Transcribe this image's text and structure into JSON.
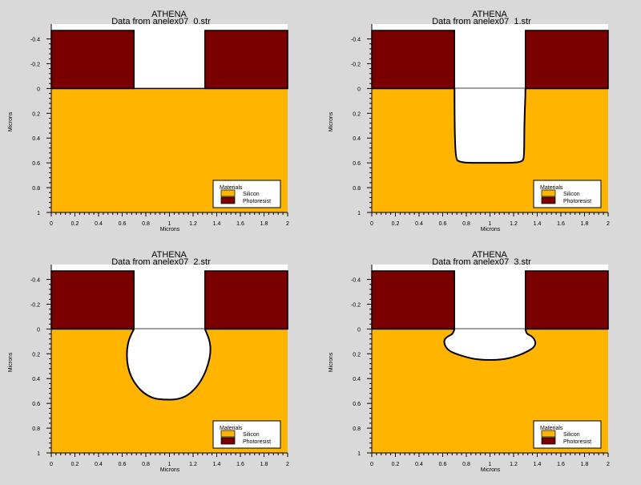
{
  "colors": {
    "background": "#d9d9d9",
    "silicon": "#ffb400",
    "photoresist": "#7a0000",
    "etched_void": "#ffffff",
    "outline": "#000000"
  },
  "chart_data": [
    {
      "type": "area",
      "title": "ATHENA",
      "subtitle": "Data from anelex07_0.str",
      "xlabel": "Microns",
      "ylabel": "Microns",
      "xlim": [
        0,
        2
      ],
      "ylim": [
        1,
        -0.52
      ],
      "y_inverted": true,
      "xticks": [
        "0",
        "0.2",
        "0.4",
        "0.6",
        "0.8",
        "1",
        "1.2",
        "1.4",
        "1.6",
        "1.8",
        "2"
      ],
      "yticks": [
        "-0.4",
        "-0.2",
        "0",
        "0.2",
        "0.4",
        "0.6",
        "0.8",
        "1"
      ],
      "legend": {
        "title": "Materials",
        "items": [
          "Silicon",
          "Photoresist"
        ],
        "position": "bottom-right"
      },
      "regions": {
        "silicon_surface_y": 0,
        "photoresist_top_y": -0.52,
        "photoresist_left_x": [
          0,
          0.7
        ],
        "photoresist_right_x": [
          1.3,
          2
        ],
        "etch_profile": [
          [
            0.7,
            0
          ],
          [
            1.3,
            0
          ]
        ]
      }
    },
    {
      "type": "area",
      "title": "ATHENA",
      "subtitle": "Data from anelex07_1.str",
      "xlabel": "Microns",
      "ylabel": "Microns",
      "xlim": [
        0,
        2
      ],
      "ylim": [
        1,
        -0.52
      ],
      "y_inverted": true,
      "xticks": [
        "0",
        "0.2",
        "0.4",
        "0.6",
        "0.8",
        "1",
        "1.2",
        "1.4",
        "1.6",
        "1.8",
        "2"
      ],
      "yticks": [
        "-0.4",
        "-0.2",
        "0",
        "0.2",
        "0.4",
        "0.6",
        "0.8",
        "1"
      ],
      "legend": {
        "title": "Materials",
        "items": [
          "Silicon",
          "Photoresist"
        ],
        "position": "bottom-right"
      },
      "regions": {
        "silicon_surface_y": 0,
        "photoresist_top_y": -0.52,
        "photoresist_left_x": [
          0,
          0.7
        ],
        "photoresist_right_x": [
          1.3,
          2
        ],
        "etch_profile": [
          [
            0.7,
            0
          ],
          [
            0.7,
            0.3
          ],
          [
            0.71,
            0.57
          ],
          [
            0.74,
            0.59
          ],
          [
            0.8,
            0.6
          ],
          [
            1.0,
            0.6
          ],
          [
            1.2,
            0.6
          ],
          [
            1.27,
            0.59
          ],
          [
            1.29,
            0.56
          ],
          [
            1.29,
            0.3
          ],
          [
            1.3,
            0.05
          ],
          [
            1.3,
            0
          ]
        ]
      }
    },
    {
      "type": "area",
      "title": "ATHENA",
      "subtitle": "Data from anelex07_2.str",
      "xlabel": "Microns",
      "ylabel": "Microns",
      "xlim": [
        0,
        2
      ],
      "ylim": [
        1,
        -0.52
      ],
      "y_inverted": true,
      "xticks": [
        "0",
        "0.2",
        "0.4",
        "0.6",
        "0.8",
        "1",
        "1.2",
        "1.4",
        "1.6",
        "1.8",
        "2"
      ],
      "yticks": [
        "-0.4",
        "-0.2",
        "0",
        "0.2",
        "0.4",
        "0.6",
        "0.8",
        "1"
      ],
      "legend": {
        "title": "Materials",
        "items": [
          "Silicon",
          "Photoresist"
        ],
        "position": "bottom-right"
      },
      "regions": {
        "silicon_surface_y": 0,
        "photoresist_top_y": -0.52,
        "photoresist_left_x": [
          0,
          0.7
        ],
        "photoresist_right_x": [
          1.3,
          2
        ],
        "etch_profile": [
          [
            0.7,
            0
          ],
          [
            0.66,
            0.07
          ],
          [
            0.64,
            0.16
          ],
          [
            0.64,
            0.26
          ],
          [
            0.66,
            0.35
          ],
          [
            0.7,
            0.43
          ],
          [
            0.77,
            0.51
          ],
          [
            0.86,
            0.56
          ],
          [
            0.95,
            0.57
          ],
          [
            1.06,
            0.57
          ],
          [
            1.15,
            0.54
          ],
          [
            1.23,
            0.47
          ],
          [
            1.29,
            0.38
          ],
          [
            1.33,
            0.28
          ],
          [
            1.35,
            0.18
          ],
          [
            1.34,
            0.09
          ],
          [
            1.3,
            0
          ]
        ]
      }
    },
    {
      "type": "area",
      "title": "ATHENA",
      "subtitle": "Data from anelex07_3.str",
      "xlabel": "Microns",
      "ylabel": "Microns",
      "xlim": [
        0,
        2
      ],
      "ylim": [
        1,
        -0.52
      ],
      "y_inverted": true,
      "xticks": [
        "0",
        "0.2",
        "0.4",
        "0.6",
        "0.8",
        "1",
        "1.2",
        "1.4",
        "1.6",
        "1.8",
        "2"
      ],
      "yticks": [
        "-0.4",
        "-0.2",
        "0",
        "0.2",
        "0.4",
        "0.6",
        "0.8",
        "1"
      ],
      "legend": {
        "title": "Materials",
        "items": [
          "Silicon",
          "Photoresist"
        ],
        "position": "bottom-right"
      },
      "regions": {
        "silicon_surface_y": 0,
        "photoresist_top_y": -0.52,
        "photoresist_left_x": [
          0,
          0.7
        ],
        "photoresist_right_x": [
          1.3,
          2
        ],
        "etch_profile": [
          [
            0.7,
            0
          ],
          [
            0.69,
            0.04
          ],
          [
            0.64,
            0.06
          ],
          [
            0.61,
            0.09
          ],
          [
            0.62,
            0.14
          ],
          [
            0.66,
            0.18
          ],
          [
            0.74,
            0.21
          ],
          [
            0.85,
            0.24
          ],
          [
            0.95,
            0.25
          ],
          [
            1.05,
            0.25
          ],
          [
            1.15,
            0.24
          ],
          [
            1.25,
            0.21
          ],
          [
            1.32,
            0.18
          ],
          [
            1.37,
            0.15
          ],
          [
            1.39,
            0.11
          ],
          [
            1.36,
            0.06
          ],
          [
            1.31,
            0.04
          ],
          [
            1.3,
            0
          ]
        ]
      }
    }
  ]
}
